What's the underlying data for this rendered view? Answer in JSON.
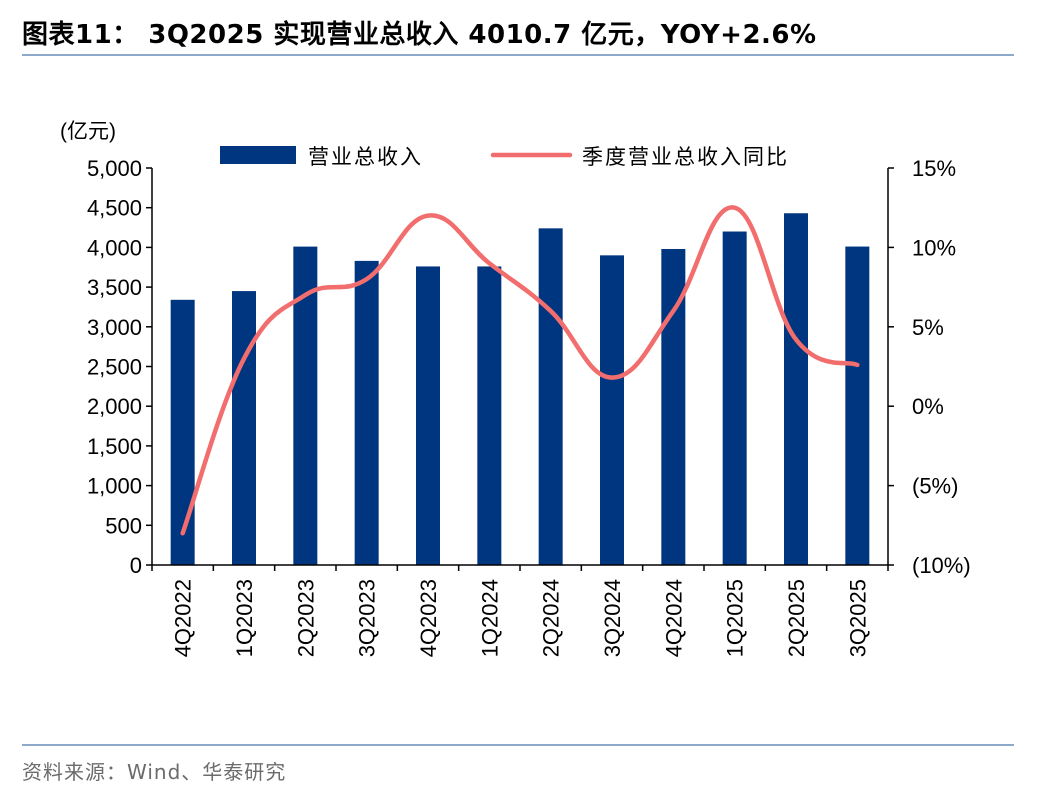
{
  "header": {
    "title": "图表11：  3Q2025 实现营业总收入 4010.7 亿元，YOY+2.6%"
  },
  "footer": {
    "source": "资料来源：Wind、华泰研究"
  },
  "chart_data": {
    "type": "bar",
    "categories": [
      "4Q2022",
      "1Q2023",
      "2Q2023",
      "3Q2023",
      "4Q2023",
      "1Q2024",
      "2Q2024",
      "3Q2024",
      "4Q2024",
      "1Q2025",
      "2Q2025",
      "3Q2025"
    ],
    "series": [
      {
        "name": "营业总收入",
        "type": "bar",
        "axis": "left",
        "color": "#003580",
        "values": [
          3340,
          3450,
          4010,
          3830,
          3760,
          3760,
          4240,
          3900,
          3980,
          4200,
          4430,
          4010.7
        ]
      },
      {
        "name": "季度营业总收入同比",
        "type": "line",
        "axis": "right",
        "color": "#f26d6d",
        "values": [
          -8.0,
          3.0,
          7.0,
          8.0,
          12.0,
          9.0,
          6.0,
          1.8,
          6.0,
          12.5,
          4.2,
          2.6
        ]
      }
    ],
    "y_left": {
      "label": "(亿元)",
      "range": [
        0,
        5000
      ],
      "ticks": [
        0,
        500,
        1000,
        1500,
        2000,
        2500,
        3000,
        3500,
        4000,
        4500,
        5000
      ],
      "tick_labels": [
        "0",
        "500",
        "1,000",
        "1,500",
        "2,000",
        "2,500",
        "3,000",
        "3,500",
        "4,000",
        "4,500",
        "5,000"
      ]
    },
    "y_right": {
      "range": [
        -10,
        15
      ],
      "ticks": [
        -10,
        -5,
        0,
        5,
        10,
        15
      ],
      "tick_labels": [
        "(10%)",
        "(5%)",
        "0%",
        "5%",
        "10%",
        "15%"
      ]
    },
    "grid": false,
    "legend_position": "top",
    "x_tick_rotation": "vertical"
  }
}
